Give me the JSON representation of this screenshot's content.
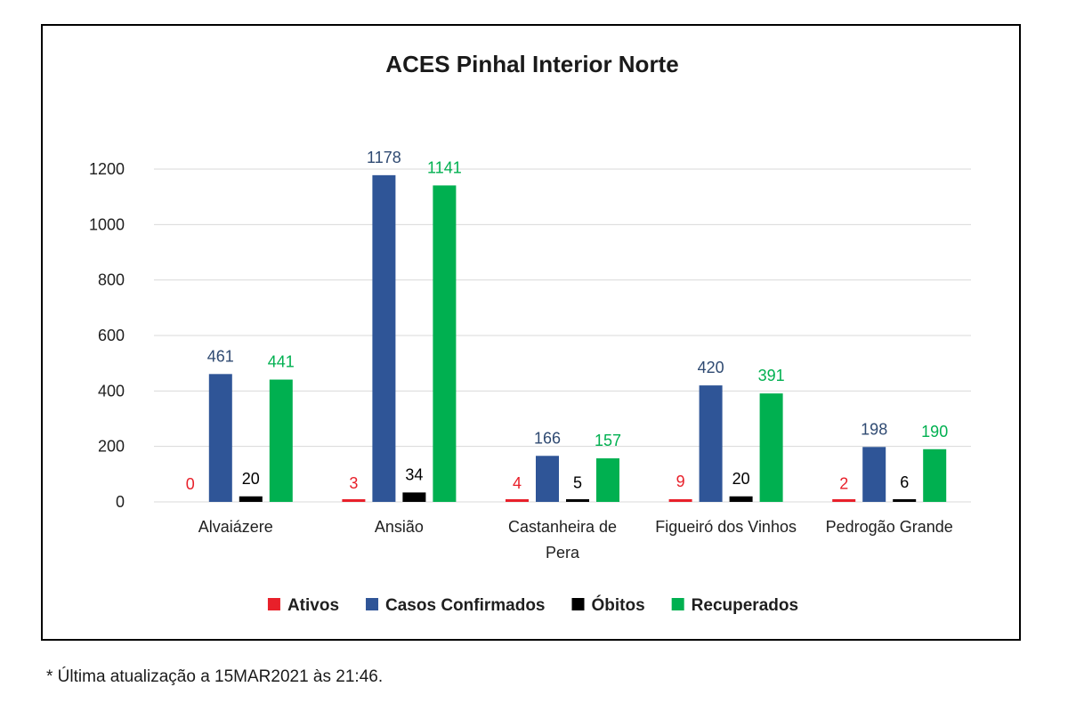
{
  "footnote": "* Última atualização a 15MAR2021 às 21:46.",
  "chart_data": {
    "type": "bar",
    "title": "ACES Pinhal Interior Norte",
    "xlabel": "",
    "ylabel": "",
    "ylim": [
      0,
      1200
    ],
    "yticks": [
      0,
      200,
      400,
      600,
      800,
      1000,
      1200
    ],
    "grid": true,
    "legend_position": "bottom",
    "categories": [
      [
        "Alvaiázere"
      ],
      [
        "Ansião"
      ],
      [
        "Castanheira de",
        "Pera"
      ],
      [
        "Figueiró dos Vinhos"
      ],
      [
        "Pedrogão Grande"
      ]
    ],
    "series": [
      {
        "name": "Ativos",
        "color": "#e8202a",
        "label_color": "#e8202a",
        "values": [
          0,
          3,
          4,
          9,
          2
        ]
      },
      {
        "name": "Casos Confirmados",
        "color": "#2f5597",
        "label_color": "#2f4a72",
        "values": [
          461,
          1178,
          166,
          420,
          198
        ]
      },
      {
        "name": "Óbitos",
        "color": "#000000",
        "label_color": "#000000",
        "values": [
          20,
          34,
          5,
          20,
          6
        ]
      },
      {
        "name": "Recuperados",
        "color": "#00b050",
        "label_color": "#00b050",
        "values": [
          441,
          1141,
          157,
          391,
          190
        ]
      }
    ]
  }
}
